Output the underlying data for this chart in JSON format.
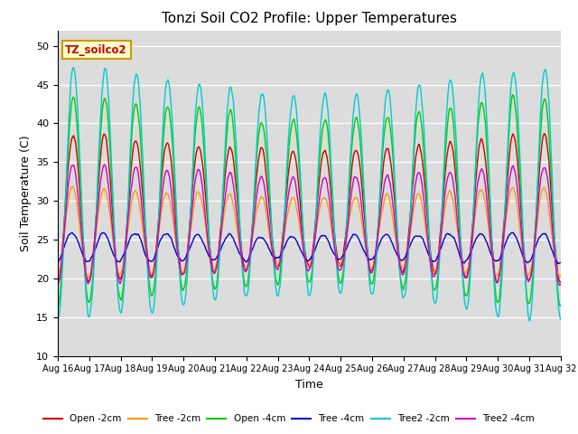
{
  "title": "Tonzi Soil CO2 Profile: Upper Temperatures",
  "xlabel": "Time",
  "ylabel": "Soil Temperature (C)",
  "ylim": [
    10,
    52
  ],
  "yticks": [
    10,
    15,
    20,
    25,
    30,
    35,
    40,
    45,
    50
  ],
  "bg_color": "#dcdcdc",
  "series_colors": {
    "Open -2cm": "#cc0000",
    "Tree -2cm": "#ff9900",
    "Open -4cm": "#00cc00",
    "Tree -4cm": "#0000cc",
    "Tree2 -2cm": "#00cccc",
    "Tree2 -4cm": "#cc00cc"
  },
  "legend_box_facecolor": "#ffffcc",
  "legend_box_edge": "#cc9900",
  "legend_text_color": "#cc0000",
  "n_days": 16,
  "samples_per_day": 48,
  "start_day": 16,
  "annotation": "TZ_soilco2"
}
